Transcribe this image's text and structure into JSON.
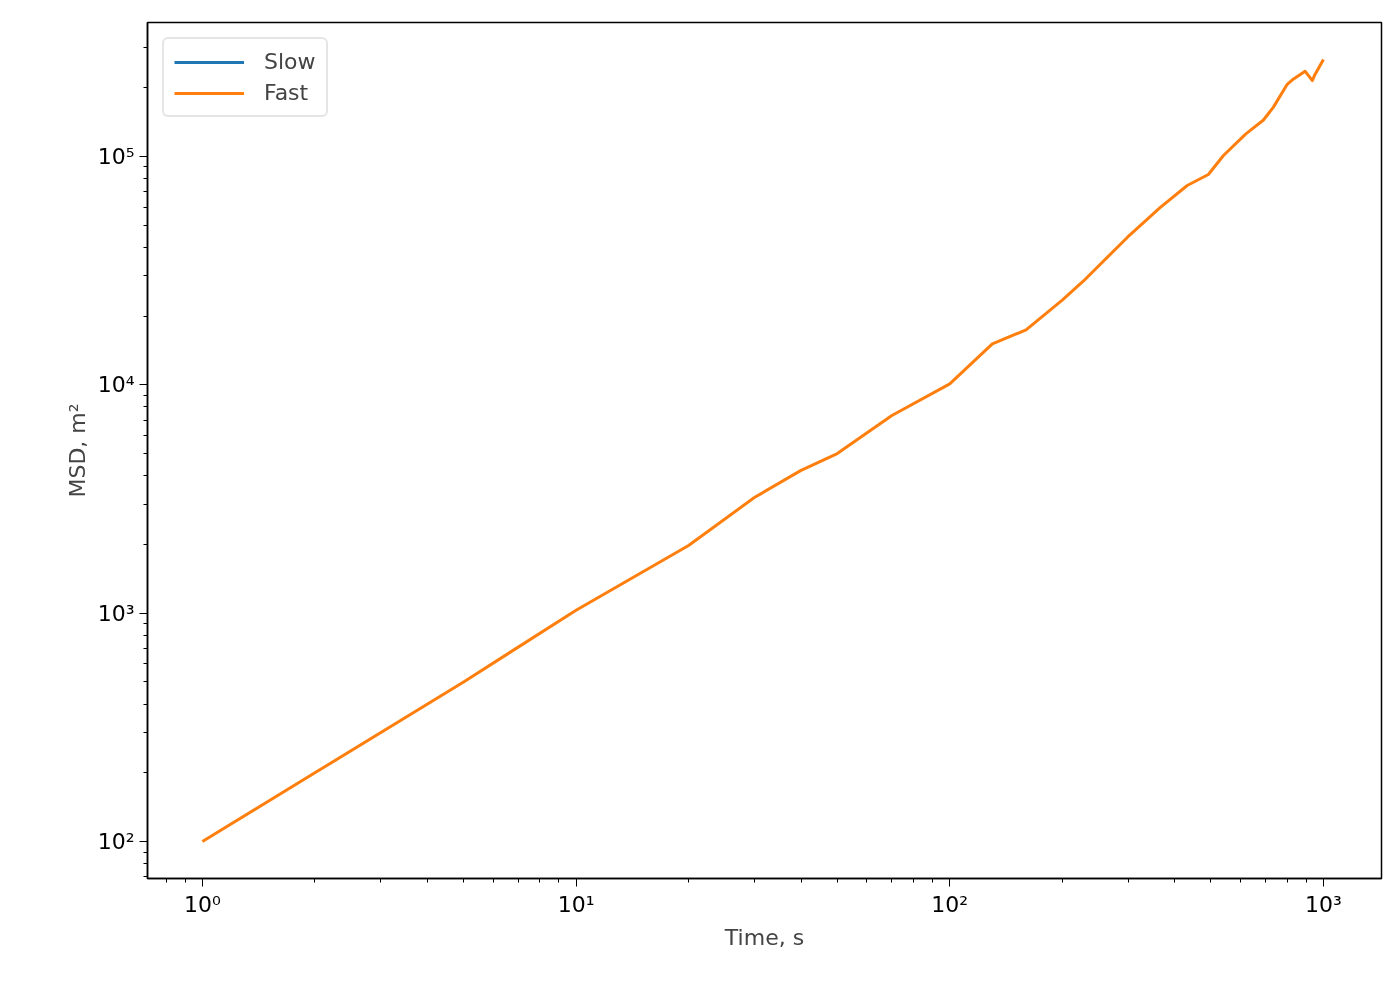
{
  "chart_data": {
    "type": "line",
    "xlabel": "Time, s",
    "ylabel": "MSD, m²",
    "log": "xy",
    "grid": false,
    "legend": "top left",
    "line_style": "solid",
    "marker": "none",
    "xlim": [
      0.713,
      1430
    ],
    "ylim": [
      68.9,
      386000
    ],
    "xticks": [
      {
        "value": 1,
        "label": "10⁰"
      },
      {
        "value": 10,
        "label": "10¹"
      },
      {
        "value": 100,
        "label": "10²"
      },
      {
        "value": 1000,
        "label": "10³"
      }
    ],
    "yticks": [
      {
        "value": 100,
        "label": "10²"
      },
      {
        "value": 1000,
        "label": "10³"
      },
      {
        "value": 10000,
        "label": "10⁴"
      },
      {
        "value": 100000,
        "label": "10⁵"
      }
    ],
    "x": [
      1,
      2,
      5,
      10,
      20,
      30,
      40,
      50,
      70,
      100,
      130,
      160,
      200,
      228,
      299,
      366,
      432,
      492,
      540,
      618,
      637,
      690,
      734,
      800,
      830,
      893,
      912,
      934,
      946,
      1000
    ],
    "series": [
      {
        "name": "Slow",
        "color": "#1f77b4",
        "values": [
          null,
          null,
          null,
          null,
          null,
          null,
          null,
          null,
          null,
          null,
          null,
          null,
          null,
          null,
          null,
          null,
          null,
          null,
          null,
          null,
          null,
          null,
          null,
          null,
          null,
          null,
          null,
          null,
          null,
          null
        ]
      },
      {
        "name": "Fast",
        "color": "#ff7f0e",
        "values": [
          100,
          200,
          500,
          1030,
          1980,
          3210,
          4220,
          5000,
          7340,
          10100,
          15100,
          17400,
          23500,
          28500,
          44300,
          59800,
          74600,
          83400,
          101000,
          125000,
          130000,
          144000,
          164000,
          207000,
          218000,
          236000,
          226000,
          215000,
          226000,
          266000
        ]
      }
    ]
  }
}
